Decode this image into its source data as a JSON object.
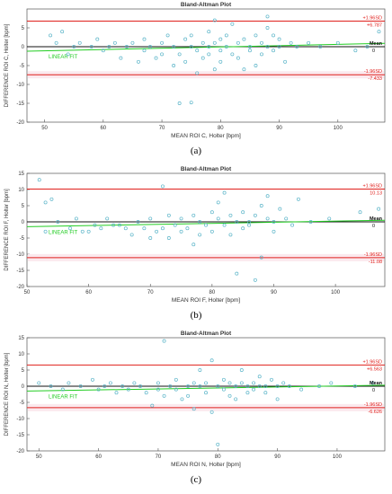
{
  "chart_data": [
    {
      "type": "scatter",
      "title": "Bland-Altman Plot",
      "xlabel": "MEAN ROI C, Holter [bpm]",
      "ylabel": "DIFFERENCE ROI C, Holter [bpm]",
      "caption": "(a)",
      "xlim": [
        47,
        108
      ],
      "ylim": [
        -20,
        10
      ],
      "xticks": [
        "50",
        "60",
        "70",
        "80",
        "90",
        "100"
      ],
      "yticks": [
        "-20",
        "-15",
        "-10",
        "-5",
        "0",
        "5"
      ],
      "upper": {
        "label": "+1.96SD",
        "value": 6.787,
        "value_label": "+6.787"
      },
      "mean": {
        "label": "Mean",
        "value": 0,
        "value_label": "0"
      },
      "lower": {
        "label": "-1.96SD",
        "value": -7.433,
        "value_label": "-7.433"
      },
      "fit": {
        "label": "LINEAR FIT",
        "y_start": -1.2,
        "y_end": 0.9
      },
      "colors": {
        "limits": "#e0201c",
        "mean": "#111111",
        "fit": "#22cc22",
        "points": "#5ab4c8"
      },
      "points": [
        [
          51,
          3
        ],
        [
          52,
          1
        ],
        [
          53,
          4
        ],
        [
          54,
          -2
        ],
        [
          55,
          0
        ],
        [
          56,
          1
        ],
        [
          58,
          0
        ],
        [
          59,
          2
        ],
        [
          60,
          -1
        ],
        [
          61,
          0
        ],
        [
          62,
          1
        ],
        [
          63,
          -3
        ],
        [
          64,
          0
        ],
        [
          65,
          1
        ],
        [
          66,
          -4
        ],
        [
          67,
          2
        ],
        [
          67,
          -1
        ],
        [
          68,
          0
        ],
        [
          69,
          -3
        ],
        [
          70,
          1
        ],
        [
          70,
          -2
        ],
        [
          71,
          3
        ],
        [
          72,
          0
        ],
        [
          72,
          -5
        ],
        [
          73,
          -2
        ],
        [
          73,
          -15
        ],
        [
          74,
          2
        ],
        [
          74,
          -4
        ],
        [
          75,
          0
        ],
        [
          75,
          -14.8
        ],
        [
          75,
          3
        ],
        [
          76,
          -1
        ],
        [
          76,
          -7
        ],
        [
          77,
          1
        ],
        [
          77,
          -3
        ],
        [
          78,
          4
        ],
        [
          78,
          -2
        ],
        [
          78,
          0
        ],
        [
          79,
          7
        ],
        [
          79,
          -6
        ],
        [
          79,
          1
        ],
        [
          80,
          2
        ],
        [
          80,
          -1
        ],
        [
          80,
          -4
        ],
        [
          81,
          3
        ],
        [
          81,
          0
        ],
        [
          82,
          -2
        ],
        [
          82,
          6
        ],
        [
          83,
          1
        ],
        [
          83,
          -3
        ],
        [
          84,
          -6
        ],
        [
          84,
          2
        ],
        [
          85,
          -1
        ],
        [
          85,
          0
        ],
        [
          86,
          3
        ],
        [
          86,
          -5
        ],
        [
          87,
          1
        ],
        [
          87,
          -2
        ],
        [
          88,
          5
        ],
        [
          88,
          8
        ],
        [
          88,
          0
        ],
        [
          89,
          -1
        ],
        [
          89,
          3
        ],
        [
          90,
          2
        ],
        [
          90,
          0
        ],
        [
          91,
          -4
        ],
        [
          92,
          1
        ],
        [
          93,
          0
        ],
        [
          95,
          1
        ],
        [
          97,
          0
        ],
        [
          100,
          1
        ],
        [
          103,
          -1
        ],
        [
          105,
          0
        ],
        [
          107,
          4
        ]
      ]
    },
    {
      "type": "scatter",
      "title": "Bland-Altman Plot",
      "xlabel": "MEAN ROI F, Holter [bpm]",
      "ylabel": "DIFFERENCE ROI F, Holter [bpm]",
      "caption": "(b)",
      "xlim": [
        50,
        108
      ],
      "ylim": [
        -20,
        15
      ],
      "xticks": [
        "50",
        "60",
        "70",
        "80",
        "90",
        "100"
      ],
      "yticks": [
        "-20",
        "-15",
        "-10",
        "-5",
        "0",
        "5",
        "10",
        "15"
      ],
      "upper": {
        "label": "+1.96SD",
        "value": 10.13,
        "value_label": "10.13"
      },
      "mean": {
        "label": "Mean",
        "value": 0,
        "value_label": "0"
      },
      "lower": {
        "label": "-1.96SD",
        "value": -11.08,
        "value_label": "-11.08"
      },
      "fit": {
        "label": "LINEAR FIT",
        "y_start": -1.5,
        "y_end": 0.5
      },
      "colors": {
        "limits": "#e0201c",
        "mean": "#111111",
        "fit": "#22cc22",
        "points": "#5ab4c8"
      },
      "points": [
        [
          52,
          13
        ],
        [
          53,
          6
        ],
        [
          53,
          -3
        ],
        [
          54,
          7
        ],
        [
          55,
          0
        ],
        [
          57,
          -2
        ],
        [
          58,
          1
        ],
        [
          59,
          -3
        ],
        [
          60,
          -3
        ],
        [
          61,
          -1
        ],
        [
          62,
          -2
        ],
        [
          63,
          1
        ],
        [
          64,
          -1
        ],
        [
          65,
          -1
        ],
        [
          66,
          -2
        ],
        [
          67,
          -4
        ],
        [
          68,
          0
        ],
        [
          69,
          -2
        ],
        [
          70,
          -5
        ],
        [
          70,
          1
        ],
        [
          71,
          -3
        ],
        [
          72,
          11
        ],
        [
          72,
          -2
        ],
        [
          73,
          2
        ],
        [
          73,
          -5
        ],
        [
          74,
          -1
        ],
        [
          75,
          -3
        ],
        [
          75,
          1
        ],
        [
          76,
          -2
        ],
        [
          77,
          -7
        ],
        [
          77,
          2
        ],
        [
          78,
          0
        ],
        [
          78,
          -4
        ],
        [
          79,
          -1
        ],
        [
          80,
          3
        ],
        [
          80,
          -3
        ],
        [
          81,
          6
        ],
        [
          81,
          1
        ],
        [
          82,
          -1
        ],
        [
          82,
          9
        ],
        [
          83,
          2
        ],
        [
          83,
          -4
        ],
        [
          84,
          0
        ],
        [
          84,
          -16
        ],
        [
          85,
          -2
        ],
        [
          85,
          3
        ],
        [
          86,
          -1
        ],
        [
          86,
          0
        ],
        [
          87,
          2
        ],
        [
          87,
          -18
        ],
        [
          88,
          5
        ],
        [
          88,
          -11
        ],
        [
          89,
          1
        ],
        [
          89,
          8
        ],
        [
          90,
          0
        ],
        [
          90,
          -3
        ],
        [
          91,
          4
        ],
        [
          92,
          1
        ],
        [
          93,
          -1
        ],
        [
          94,
          7
        ],
        [
          96,
          0
        ],
        [
          99,
          1
        ],
        [
          104,
          3
        ],
        [
          107,
          4
        ]
      ]
    },
    {
      "type": "scatter",
      "title": "Bland-Altman Plot",
      "xlabel": "MEAN ROI N, Holter [bpm]",
      "ylabel": "DIFFERENCE ROI N, Holter [bpm]",
      "caption": "(c)",
      "xlim": [
        48,
        108
      ],
      "ylim": [
        -20,
        15
      ],
      "xticks": [
        "50",
        "60",
        "70",
        "80",
        "90",
        "100"
      ],
      "yticks": [
        "-20",
        "-15",
        "-10",
        "-5",
        "0",
        "5",
        "10",
        "15"
      ],
      "upper": {
        "label": "+1.96SD",
        "value": 6.563,
        "value_label": "+6.563"
      },
      "mean": {
        "label": "Mean",
        "value": 0,
        "value_label": "0"
      },
      "lower": {
        "label": "-1.96SD",
        "value": -6.626,
        "value_label": "-6.626"
      },
      "fit": {
        "label": "LINEAR FIT",
        "y_start": -1.5,
        "y_end": 0.3
      },
      "colors": {
        "limits": "#e0201c",
        "mean": "#111111",
        "fit": "#22cc22",
        "points": "#5ab4c8"
      },
      "points": [
        [
          50,
          1
        ],
        [
          52,
          0
        ],
        [
          54,
          -1
        ],
        [
          55,
          1
        ],
        [
          57,
          0
        ],
        [
          59,
          2
        ],
        [
          60,
          -1
        ],
        [
          61,
          0
        ],
        [
          62,
          1
        ],
        [
          63,
          -2
        ],
        [
          64,
          0
        ],
        [
          65,
          -1
        ],
        [
          66,
          1
        ],
        [
          67,
          0
        ],
        [
          68,
          -2
        ],
        [
          69,
          -6
        ],
        [
          70,
          1
        ],
        [
          70,
          -1
        ],
        [
          71,
          14
        ],
        [
          71,
          -3
        ],
        [
          72,
          0
        ],
        [
          73,
          2
        ],
        [
          73,
          -1
        ],
        [
          74,
          -4
        ],
        [
          75,
          0
        ],
        [
          75,
          -3
        ],
        [
          76,
          1
        ],
        [
          76,
          -7
        ],
        [
          77,
          0
        ],
        [
          77,
          5
        ],
        [
          78,
          -2
        ],
        [
          78,
          1
        ],
        [
          79,
          8
        ],
        [
          79,
          -8
        ],
        [
          80,
          0
        ],
        [
          80,
          -18
        ],
        [
          81,
          2
        ],
        [
          81,
          -1
        ],
        [
          82,
          1
        ],
        [
          82,
          -3
        ],
        [
          83,
          0
        ],
        [
          83,
          -4
        ],
        [
          84,
          1
        ],
        [
          84,
          5
        ],
        [
          85,
          -2
        ],
        [
          85,
          0
        ],
        [
          86,
          1
        ],
        [
          86,
          -1
        ],
        [
          87,
          0
        ],
        [
          87,
          3
        ],
        [
          88,
          0
        ],
        [
          88,
          -2
        ],
        [
          89,
          2
        ],
        [
          90,
          0
        ],
        [
          90,
          -4
        ],
        [
          91,
          1
        ],
        [
          92,
          0
        ],
        [
          94,
          -1
        ],
        [
          97,
          0
        ],
        [
          99,
          1
        ],
        [
          103,
          0
        ],
        [
          106,
          1
        ]
      ]
    }
  ]
}
